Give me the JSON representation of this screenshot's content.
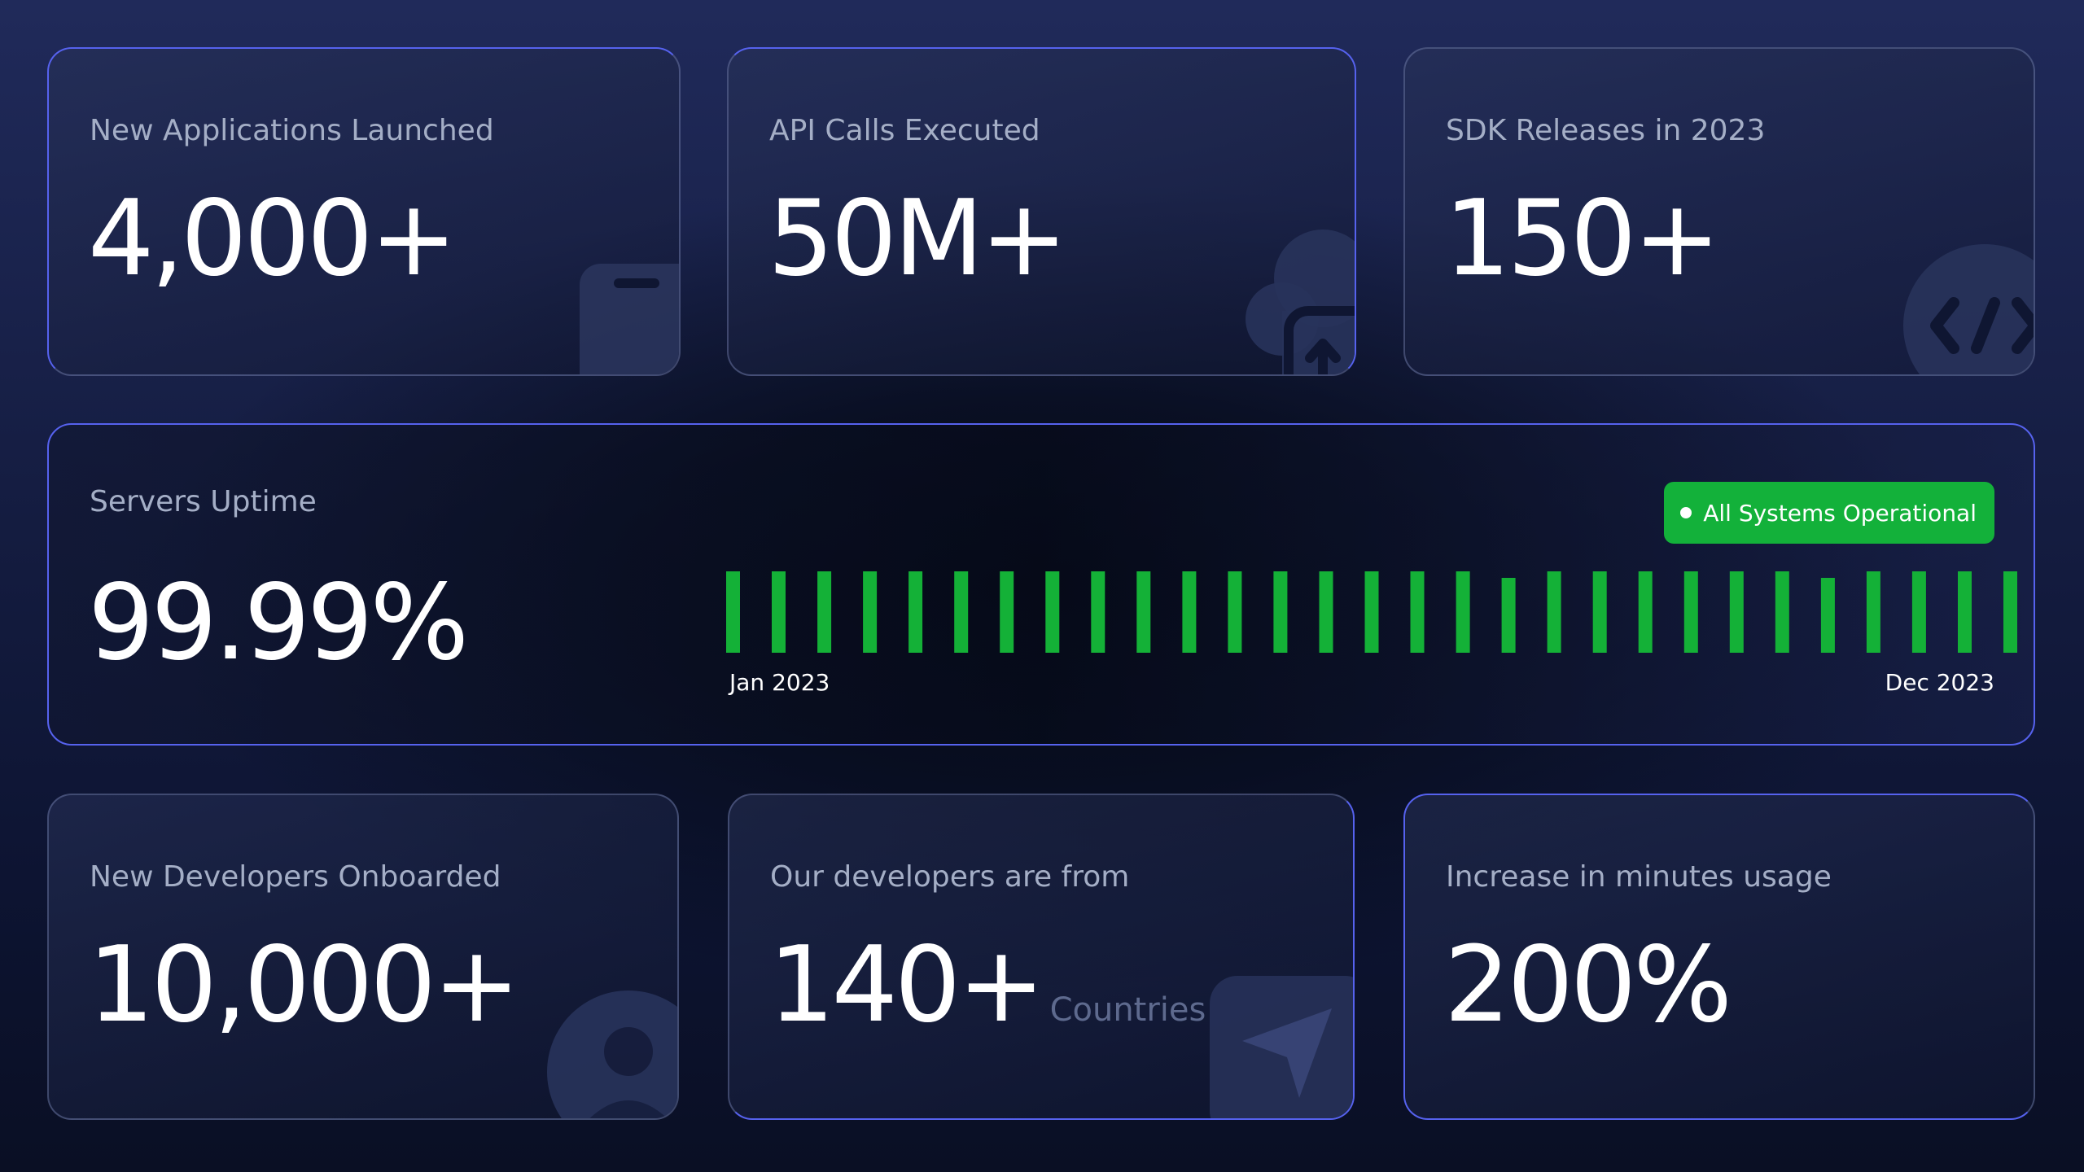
{
  "cards": {
    "apps": {
      "label": "New Applications Launched",
      "value": "4,000+",
      "icon": "phone-icon"
    },
    "api": {
      "label": "API Calls Executed",
      "value": "50M+",
      "icon": "cloud-upload-icon"
    },
    "sdk": {
      "label": "SDK Releases in 2023",
      "value": "150+",
      "icon": "code-icon"
    },
    "devs": {
      "label": "New Developers Onboarded",
      "value": "10,000+",
      "icon": "user-icon"
    },
    "countries": {
      "label": "Our developers are from",
      "value": "140+",
      "suffix": "Countries",
      "icon": "send-icon"
    },
    "minutes": {
      "label": "Increase in minutes usage",
      "value": "200%"
    }
  },
  "uptime": {
    "label": "Servers Uptime",
    "value": "99.99%",
    "status": "All Systems Operational",
    "status_color": "#13b13a",
    "start_label": "Jan 2023",
    "end_label": "Dec 2023",
    "bar_color": "#14b137",
    "bars": [
      1,
      1,
      1,
      1,
      1,
      1,
      1,
      1,
      1,
      1,
      1,
      1,
      1,
      1,
      1,
      1,
      1,
      0.92,
      1,
      1,
      1,
      1,
      1,
      1,
      0.92,
      1,
      1,
      1,
      1
    ]
  }
}
